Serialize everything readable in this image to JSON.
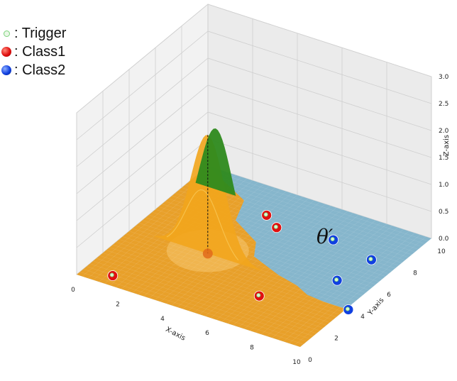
{
  "legend": [
    {
      "label": ": Trigger",
      "marker": "trigger",
      "color": "#7bd27b"
    },
    {
      "label": ": Class1",
      "marker": "class1",
      "color": "#e01010"
    },
    {
      "label": ": Class2",
      "marker": "class2",
      "color": "#1040e0"
    }
  ],
  "annotation": "θ′",
  "chart_data": {
    "type": "scatter",
    "title": "",
    "xlabel": "X-axis",
    "ylabel": "Y-axis",
    "zlabel": "Z-axis",
    "xlim": [
      0,
      10
    ],
    "ylim": [
      0,
      10
    ],
    "zlim": [
      0,
      3
    ],
    "xticks": [
      0,
      2,
      4,
      6,
      8,
      10
    ],
    "yticks": [
      0,
      2,
      4,
      6,
      8,
      10
    ],
    "zticks": [
      "0.0",
      "0.5",
      "1.0",
      "1.5",
      "2.0",
      "2.5",
      "3.0"
    ],
    "grid": true,
    "region_colors": {
      "class1": "#e8a02a",
      "class2": "#86b6cc"
    },
    "boundary": [
      [
        0,
        10
      ],
      [
        2.5,
        8.5
      ],
      [
        3,
        7
      ],
      [
        4.5,
        6
      ],
      [
        5,
        5
      ],
      [
        6.5,
        4.3
      ],
      [
        7.5,
        4
      ],
      [
        8.2,
        3.6
      ],
      [
        9,
        3.5
      ],
      [
        10,
        3.5
      ]
    ],
    "series": [
      {
        "name": "Class1",
        "color": "#e01010",
        "points": [
          [
            1.2,
            0.7
          ],
          [
            3.8,
            8
          ],
          [
            4.6,
            7.4
          ],
          [
            6.7,
            2.5
          ]
        ]
      },
      {
        "name": "Class2",
        "color": "#1040e0",
        "points": [
          [
            6.9,
            7.8
          ],
          [
            8.9,
            7.3
          ],
          [
            8.6,
            5.2
          ],
          [
            10.1,
            3.5
          ]
        ]
      }
    ],
    "trigger": {
      "x": 3.4,
      "y": 4.2,
      "z_peak": 2.2
    }
  }
}
